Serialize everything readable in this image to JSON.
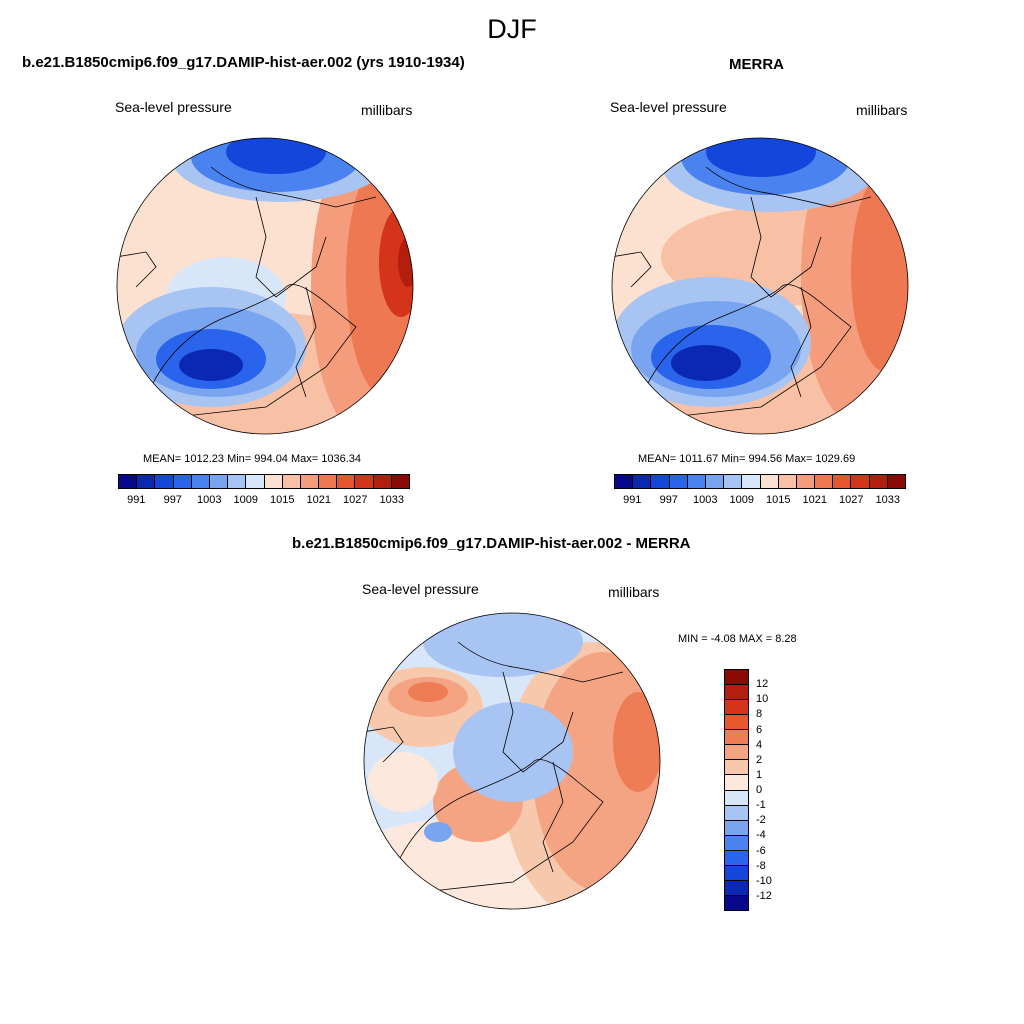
{
  "page": {
    "title": "DJF"
  },
  "panels": [
    {
      "title": "b.e21.B1850cmip6.f09_g17.DAMIP-hist-aer.002 (yrs 1910-1934)",
      "left_label": "Sea-level pressure",
      "right_label": "millibars",
      "stats": "MEAN= 1012.23  Min= 994.04  Max= 1036.34"
    },
    {
      "title": "MERRA",
      "left_label": "Sea-level pressure",
      "right_label": "millibars",
      "stats": "MEAN= 1011.67  Min= 994.56  Max= 1029.69"
    },
    {
      "title": "b.e21.B1850cmip6.f09_g17.DAMIP-hist-aer.002 - MERRA",
      "left_label": "Sea-level pressure",
      "right_label": "millibars",
      "stats": "MIN =  -4.08 MAX =   8.28"
    }
  ],
  "colors": {
    "abs_scale": [
      "#08088c",
      "#0a28b4",
      "#1446dc",
      "#2a64ec",
      "#4a82f0",
      "#78a4f0",
      "#a8c4f2",
      "#d8e6fa",
      "#fce0d0",
      "#f8c0a4",
      "#f49c7c",
      "#ee7852",
      "#e8542e",
      "#d4341a",
      "#b41e0e",
      "#8c0a06"
    ],
    "diff_scale": [
      "#08088c",
      "#0a28b4",
      "#1446dc",
      "#2a64ec",
      "#4a82f0",
      "#78a4f0",
      "#a8c4f2",
      "#d8e6fa",
      "#fce8dc",
      "#f8c8ac",
      "#f4a482",
      "#ee7c54",
      "#e8582e",
      "#d4341a",
      "#b41e0e",
      "#8c0a06"
    ]
  },
  "chart_data": [
    {
      "type": "contour-map",
      "title": "b.e21.B1850cmip6.f09_g17.DAMIP-hist-aer.002 (yrs 1910-1934)",
      "variable": "Sea-level pressure",
      "units": "millibars",
      "mean": 1012.23,
      "min": 994.04,
      "max": 1036.34,
      "colorbar_ticks": [
        "991",
        "997",
        "1003",
        "1009",
        "1015",
        "1021",
        "1027",
        "1033"
      ]
    },
    {
      "type": "contour-map",
      "title": "MERRA",
      "variable": "Sea-level pressure",
      "units": "millibars",
      "mean": 1011.67,
      "min": 994.56,
      "max": 1029.69,
      "colorbar_ticks": [
        "991",
        "997",
        "1003",
        "1009",
        "1015",
        "1021",
        "1027",
        "1033"
      ]
    },
    {
      "type": "contour-map",
      "title": "b.e21.B1850cmip6.f09_g17.DAMIP-hist-aer.002 - MERRA",
      "variable": "Sea-level pressure",
      "units": "millibars",
      "min": -4.08,
      "max": 8.28,
      "colorbar_ticks": [
        "12",
        "10",
        "8",
        "6",
        "4",
        "2",
        "1",
        "0",
        "-1",
        "-2",
        "-4",
        "-6",
        "-8",
        "-10",
        "-12"
      ]
    }
  ]
}
